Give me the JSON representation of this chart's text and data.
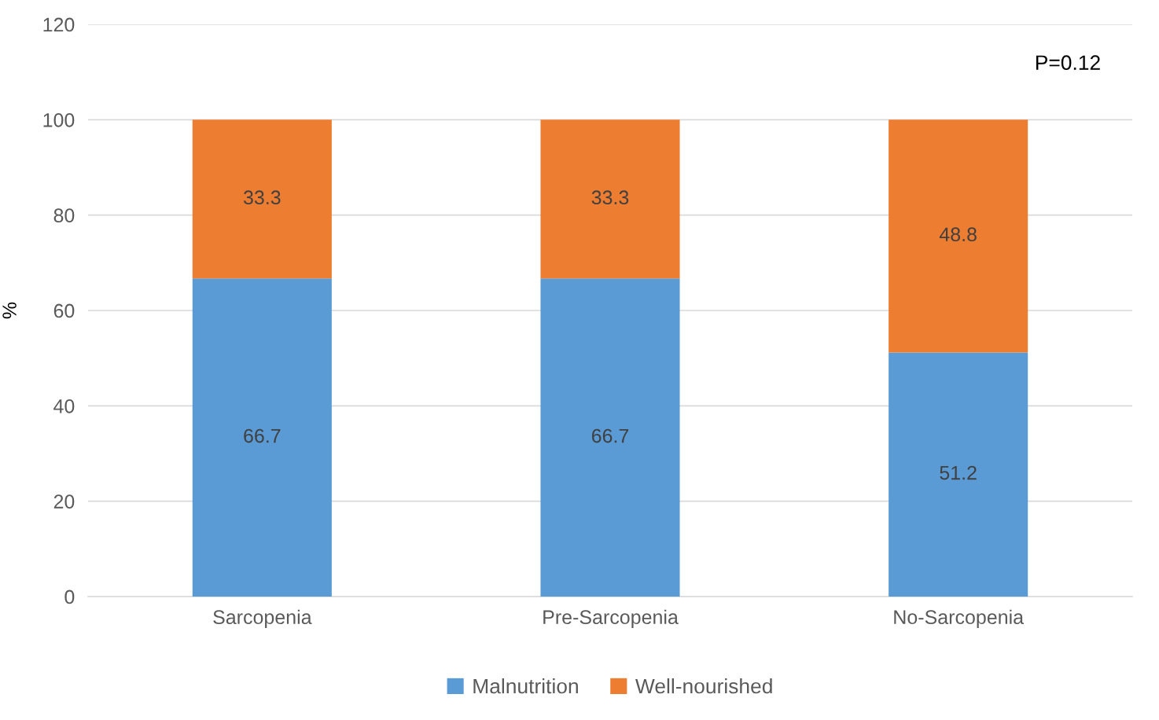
{
  "chart_data": {
    "type": "bar",
    "stacked": true,
    "ylabel": "%",
    "categories": [
      "Sarcopenia",
      "Pre-Sarcopenia",
      "No-Sarcopenia"
    ],
    "series": [
      {
        "name": "Malnutrition",
        "color": "#5b9bd5",
        "values": [
          66.7,
          66.7,
          51.2
        ]
      },
      {
        "name": "Well-nourished",
        "color": "#ed7d31",
        "values": [
          33.3,
          33.3,
          48.8
        ]
      }
    ],
    "ylim": [
      0,
      120
    ],
    "yticks": [
      0,
      20,
      40,
      60,
      80,
      100,
      120
    ],
    "grid": "y",
    "legend": "bottom",
    "data_labels": true,
    "annotations": [
      "P=0.12"
    ]
  }
}
